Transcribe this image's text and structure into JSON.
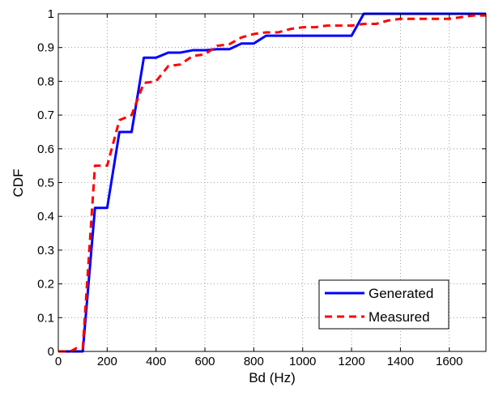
{
  "chart_data": {
    "type": "line",
    "xlabel": "Bd (Hz)",
    "ylabel": "CDF",
    "xlim": [
      0,
      1750
    ],
    "ylim": [
      0,
      1
    ],
    "xticks": [
      0,
      200,
      400,
      600,
      800,
      1000,
      1200,
      1400,
      1600
    ],
    "yticks": [
      0,
      0.1,
      0.2,
      0.3,
      0.4,
      0.5,
      0.6,
      0.7,
      0.8,
      0.9,
      1
    ],
    "xtick_labels": [
      "0",
      "200",
      "400",
      "600",
      "800",
      "1000",
      "1200",
      "1400",
      "1600"
    ],
    "ytick_labels": [
      "0",
      "0.1",
      "0.2",
      "0.3",
      "0.4",
      "0.5",
      "0.6",
      "0.7",
      "0.8",
      "0.9",
      "1"
    ],
    "grid": true,
    "legend_position": "bottom-right",
    "series": [
      {
        "name": "Generated",
        "color": "#0000ff",
        "style": "solid",
        "x": [
          0,
          100,
          150,
          200,
          250,
          300,
          350,
          400,
          450,
          500,
          550,
          600,
          650,
          700,
          750,
          800,
          850,
          900,
          1200,
          1250,
          1750
        ],
        "y": [
          0,
          0,
          0.425,
          0.425,
          0.65,
          0.65,
          0.87,
          0.87,
          0.885,
          0.885,
          0.892,
          0.892,
          0.895,
          0.895,
          0.912,
          0.912,
          0.935,
          0.935,
          0.935,
          1.0,
          1.0
        ]
      },
      {
        "name": "Measured",
        "color": "#ff0000",
        "style": "dashed",
        "x": [
          0,
          50,
          75,
          100,
          150,
          200,
          250,
          300,
          350,
          400,
          450,
          500,
          550,
          600,
          650,
          700,
          750,
          800,
          850,
          900,
          950,
          1000,
          1050,
          1100,
          1150,
          1200,
          1250,
          1300,
          1350,
          1400,
          1450,
          1500,
          1550,
          1600,
          1650,
          1700,
          1750
        ],
        "y": [
          0,
          0,
          0.01,
          0.01,
          0.55,
          0.55,
          0.685,
          0.7,
          0.795,
          0.8,
          0.845,
          0.85,
          0.875,
          0.88,
          0.905,
          0.91,
          0.93,
          0.94,
          0.945,
          0.945,
          0.955,
          0.96,
          0.96,
          0.965,
          0.965,
          0.965,
          0.97,
          0.97,
          0.98,
          0.985,
          0.985,
          0.985,
          0.985,
          0.985,
          0.99,
          0.995,
          0.995
        ]
      }
    ]
  }
}
